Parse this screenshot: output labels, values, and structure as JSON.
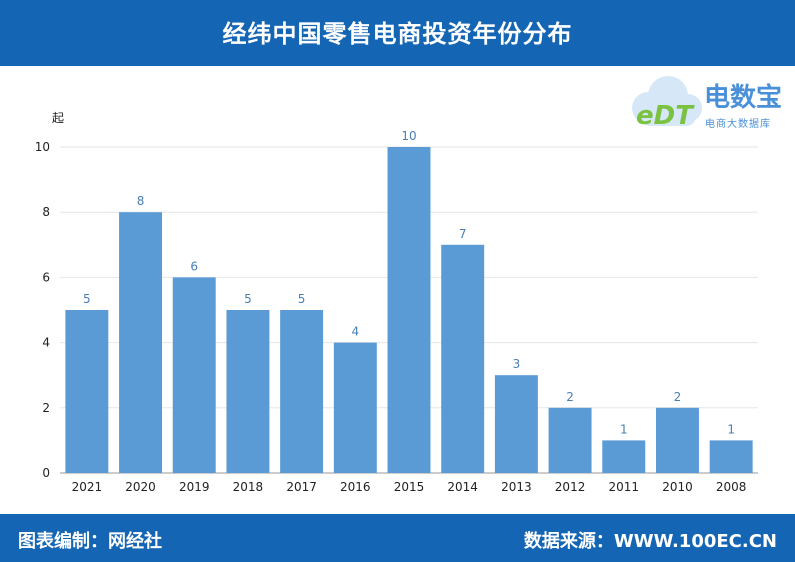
{
  "header": {
    "title": "经纬中国零售电商投资年份分布"
  },
  "footer": {
    "left": "图表编制：网经社",
    "right": "数据来源：WWW.100EC.CN"
  },
  "logo": {
    "brand": "电数宝",
    "sub": "电商大数据库",
    "mark": "eDT",
    "icon": "cloud-icon"
  },
  "colors": {
    "bar": "#5b9bd5",
    "header": "#1565b5",
    "label": "#4a7fb5",
    "brand_green": "#7cc242"
  },
  "chart_data": {
    "type": "bar",
    "unit": "起",
    "categories": [
      "2021",
      "2020",
      "2019",
      "2018",
      "2017",
      "2016",
      "2015",
      "2014",
      "2013",
      "2012",
      "2011",
      "2010",
      "2008"
    ],
    "values": [
      5,
      8,
      6,
      5,
      5,
      4,
      10,
      7,
      3,
      2,
      1,
      2,
      1
    ],
    "ylim": [
      0,
      10
    ],
    "yticks": [
      0,
      2,
      4,
      6,
      8,
      10
    ],
    "grid": true,
    "legend": "none"
  }
}
